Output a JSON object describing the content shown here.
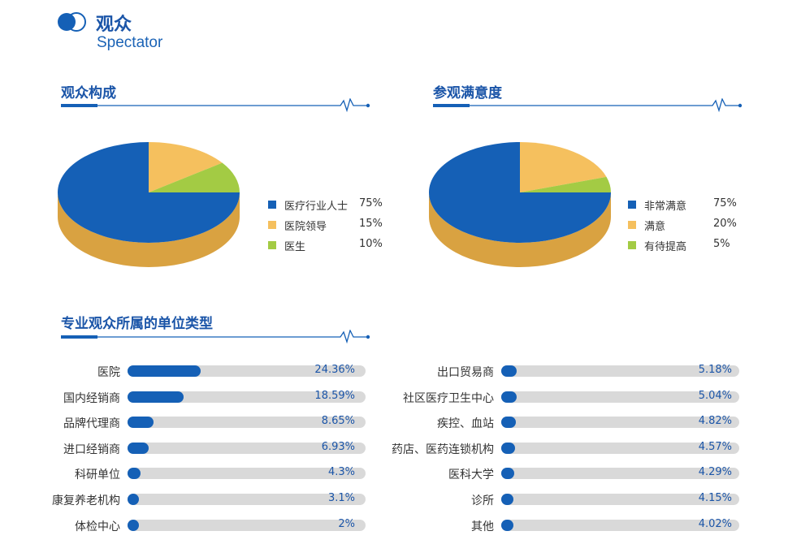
{
  "header": {
    "title": "观众",
    "subtitle": "Spectator"
  },
  "sections": {
    "composition": "观众构成",
    "satisfaction": "参观满意度",
    "unit_types": "专业观众所属的单位类型"
  },
  "colors": {
    "primary": "#1560b6",
    "primary_dark": "#0e4a93",
    "yellow": "#f5c05e",
    "green": "#a3cb44",
    "track": "#d9d9d9"
  },
  "chart_data": [
    {
      "type": "pie",
      "title": "观众构成",
      "labels": [
        "医疗行业人士",
        "医院领导",
        "医生"
      ],
      "values": [
        75,
        15,
        10
      ],
      "value_labels": [
        "75%",
        "15%",
        "10%"
      ],
      "colors": [
        "#1560b6",
        "#f5c05e",
        "#a3cb44"
      ],
      "style": "3d",
      "legend": "right"
    },
    {
      "type": "pie",
      "title": "参观满意度",
      "labels": [
        "非常满意",
        "满意",
        "有待提高"
      ],
      "values": [
        75,
        20,
        5
      ],
      "value_labels": [
        "75%",
        "20%",
        "5%"
      ],
      "colors": [
        "#1560b6",
        "#f5c05e",
        "#a3cb44"
      ],
      "style": "3d",
      "legend": "right"
    },
    {
      "type": "bar",
      "orientation": "horizontal",
      "title": "专业观众所属的单位类型",
      "categories": [
        "医院",
        "国内经销商",
        "品牌代理商",
        "进口经销商",
        "科研单位",
        "康复养老机构",
        "体检中心"
      ],
      "values": [
        24.36,
        18.59,
        8.65,
        6.93,
        4.3,
        3.1,
        2
      ],
      "value_labels": [
        "24.36%",
        "18.59%",
        "8.65%",
        "6.93%",
        "4.3%",
        "3.1%",
        "2%"
      ]
    },
    {
      "type": "bar",
      "orientation": "horizontal",
      "categories": [
        "出口贸易商",
        "社区医疗卫生中心",
        "疾控、血站",
        "药店、医药连锁机构",
        "医科大学",
        "诊所",
        "其他"
      ],
      "values": [
        5.18,
        5.04,
        4.82,
        4.57,
        4.29,
        4.15,
        4.02
      ],
      "value_labels": [
        "5.18%",
        "5.04%",
        "4.82%",
        "4.57%",
        "4.29%",
        "4.15%",
        "4.02%"
      ]
    }
  ]
}
